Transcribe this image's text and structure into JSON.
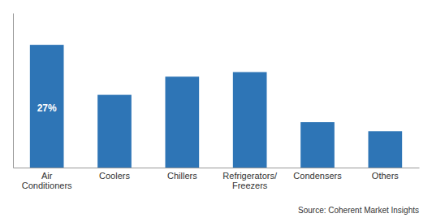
{
  "chart_data": {
    "type": "bar",
    "categories": [
      "Air\nConditioners",
      "Coolers",
      "Chillers",
      "Refrigerators/\nFreezers",
      "Condensers",
      "Others"
    ],
    "values": [
      27,
      16,
      20,
      21,
      10,
      8
    ],
    "color": "#2e75b6",
    "ylim": [
      0,
      34
    ],
    "tick_labels": "x",
    "annotations": [
      {
        "text": "27%",
        "x": "Air\nConditioners",
        "y": 13,
        "color": "white"
      }
    ],
    "source": "Source: Coherent Market Insights"
  }
}
